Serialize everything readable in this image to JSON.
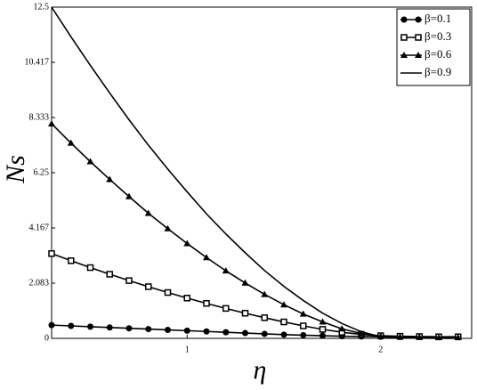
{
  "chart_data": {
    "type": "line",
    "x_label": "η",
    "y_label": "Ns",
    "x": [
      0.3,
      0.4,
      0.5,
      0.6,
      0.7,
      0.8,
      0.9,
      1.0,
      1.1,
      1.2,
      1.3,
      1.4,
      1.5,
      1.6,
      1.7,
      1.8,
      1.9,
      2.0,
      2.1,
      2.2,
      2.3,
      2.4
    ],
    "series": [
      {
        "name": "β=0.1",
        "color": "#000000",
        "marker": "circle",
        "values": [
          0.5,
          0.47,
          0.44,
          0.41,
          0.38,
          0.35,
          0.32,
          0.29,
          0.26,
          0.23,
          0.2,
          0.17,
          0.14,
          0.12,
          0.1,
          0.08,
          0.07,
          0.06,
          0.05,
          0.05,
          0.05,
          0.05
        ]
      },
      {
        "name": "β=0.3",
        "color": "#000000",
        "marker": "square",
        "values": [
          3.2,
          2.93,
          2.67,
          2.42,
          2.18,
          1.95,
          1.73,
          1.52,
          1.32,
          1.13,
          0.95,
          0.78,
          0.62,
          0.47,
          0.34,
          0.23,
          0.15,
          0.1,
          0.08,
          0.07,
          0.06,
          0.06
        ]
      },
      {
        "name": "β=0.6",
        "color": "#000000",
        "marker": "triangle",
        "values": [
          8.1,
          7.37,
          6.67,
          6.0,
          5.35,
          4.72,
          4.14,
          3.58,
          3.05,
          2.55,
          2.09,
          1.66,
          1.27,
          0.92,
          0.62,
          0.36,
          0.18,
          0.08,
          0.05,
          0.04,
          0.03,
          0.03
        ]
      },
      {
        "name": "β=0.9",
        "color": "#000000",
        "marker": "none",
        "values": [
          12.5,
          11.38,
          10.3,
          9.26,
          8.25,
          7.29,
          6.39,
          5.53,
          4.7,
          3.94,
          3.23,
          2.56,
          1.96,
          1.43,
          0.95,
          0.56,
          0.25,
          0.06,
          0.02,
          0.01,
          0,
          0
        ]
      }
    ],
    "xlim": [
      0.3,
      2.47
    ],
    "xticks": [
      1,
      2
    ],
    "ylim": [
      0,
      12.5
    ],
    "yticks": [
      0,
      2.083,
      4.167,
      6.25,
      8.333,
      10.417,
      12.5
    ],
    "grid": false,
    "legend": "upper right"
  }
}
